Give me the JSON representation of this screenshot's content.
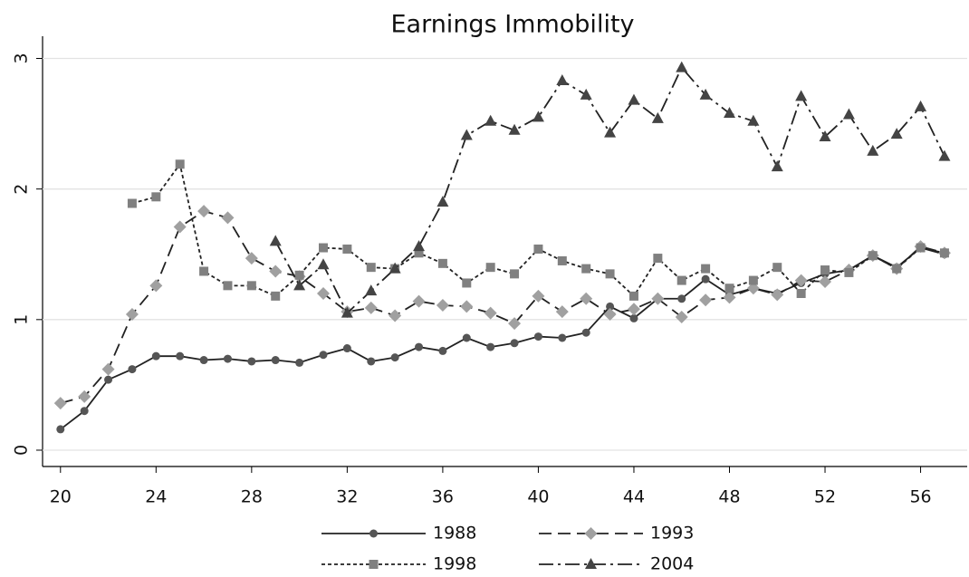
{
  "chart_data": {
    "type": "line",
    "title": "Earnings Immobility",
    "x": [
      20,
      21,
      22,
      23,
      24,
      25,
      26,
      27,
      28,
      29,
      30,
      31,
      32,
      33,
      34,
      35,
      36,
      37,
      38,
      39,
      40,
      41,
      42,
      43,
      44,
      45,
      46,
      47,
      48,
      49,
      50,
      51,
      52,
      53,
      54,
      55,
      56,
      57
    ],
    "xlim": [
      19.25,
      57.95
    ],
    "xticks": [
      20,
      24,
      28,
      32,
      36,
      40,
      44,
      48,
      52,
      56
    ],
    "ylim": [
      -0.125,
      3.17
    ],
    "yticks": [
      0,
      1,
      2,
      3
    ],
    "grid": true,
    "legend": "bottom",
    "series": [
      {
        "name": "1988",
        "color": "#222222",
        "marker_color": "#555555",
        "marker": "circle",
        "dash": "none",
        "values": [
          0.16,
          0.3,
          0.54,
          0.62,
          0.72,
          0.72,
          0.69,
          0.7,
          0.68,
          0.69,
          0.67,
          0.73,
          0.78,
          0.68,
          0.71,
          0.79,
          0.76,
          0.86,
          0.79,
          0.82,
          0.87,
          0.86,
          0.9,
          1.1,
          1.01,
          1.16,
          1.16,
          1.31,
          1.19,
          1.24,
          1.2,
          1.28,
          1.35,
          1.38,
          1.49,
          1.4,
          1.55,
          1.5
        ]
      },
      {
        "name": "1993",
        "color": "#222222",
        "marker_color": "#a0a0a0",
        "marker": "diamond",
        "dash": "14 7",
        "values": [
          0.36,
          0.41,
          0.62,
          1.04,
          1.26,
          1.71,
          1.83,
          1.78,
          1.47,
          1.37,
          1.33,
          1.2,
          1.06,
          1.09,
          1.03,
          1.14,
          1.11,
          1.1,
          1.05,
          0.97,
          1.18,
          1.06,
          1.16,
          1.04,
          1.08,
          1.16,
          1.02,
          1.15,
          1.17,
          1.24,
          1.19,
          1.3,
          1.29,
          1.38,
          1.49,
          1.39,
          1.56,
          1.51
        ]
      },
      {
        "name": "1998",
        "color": "#222222",
        "marker_color": "#808080",
        "marker": "square",
        "dash": "4 3",
        "values": [
          null,
          null,
          null,
          1.89,
          1.94,
          2.19,
          1.37,
          1.26,
          1.26,
          1.18,
          1.34,
          1.55,
          1.54,
          1.4,
          1.39,
          1.51,
          1.43,
          1.28,
          1.4,
          1.35,
          1.54,
          1.45,
          1.39,
          1.35,
          1.18,
          1.47,
          1.3,
          1.39,
          1.24,
          1.3,
          1.4,
          1.2,
          1.38,
          1.36,
          1.49,
          1.39,
          1.55,
          1.51
        ]
      },
      {
        "name": "2004",
        "color": "#222222",
        "marker_color": "#444444",
        "marker": "triangle",
        "dash": "16 5 3 5",
        "values": [
          null,
          null,
          null,
          null,
          null,
          null,
          null,
          null,
          null,
          1.6,
          1.26,
          1.42,
          1.05,
          1.22,
          1.39,
          1.56,
          1.9,
          2.41,
          2.52,
          2.45,
          2.55,
          2.83,
          2.72,
          2.43,
          2.68,
          2.54,
          2.93,
          2.72,
          2.58,
          2.52,
          2.17,
          2.71,
          2.4,
          2.57,
          2.29,
          2.42,
          2.63,
          2.25
        ]
      }
    ]
  }
}
